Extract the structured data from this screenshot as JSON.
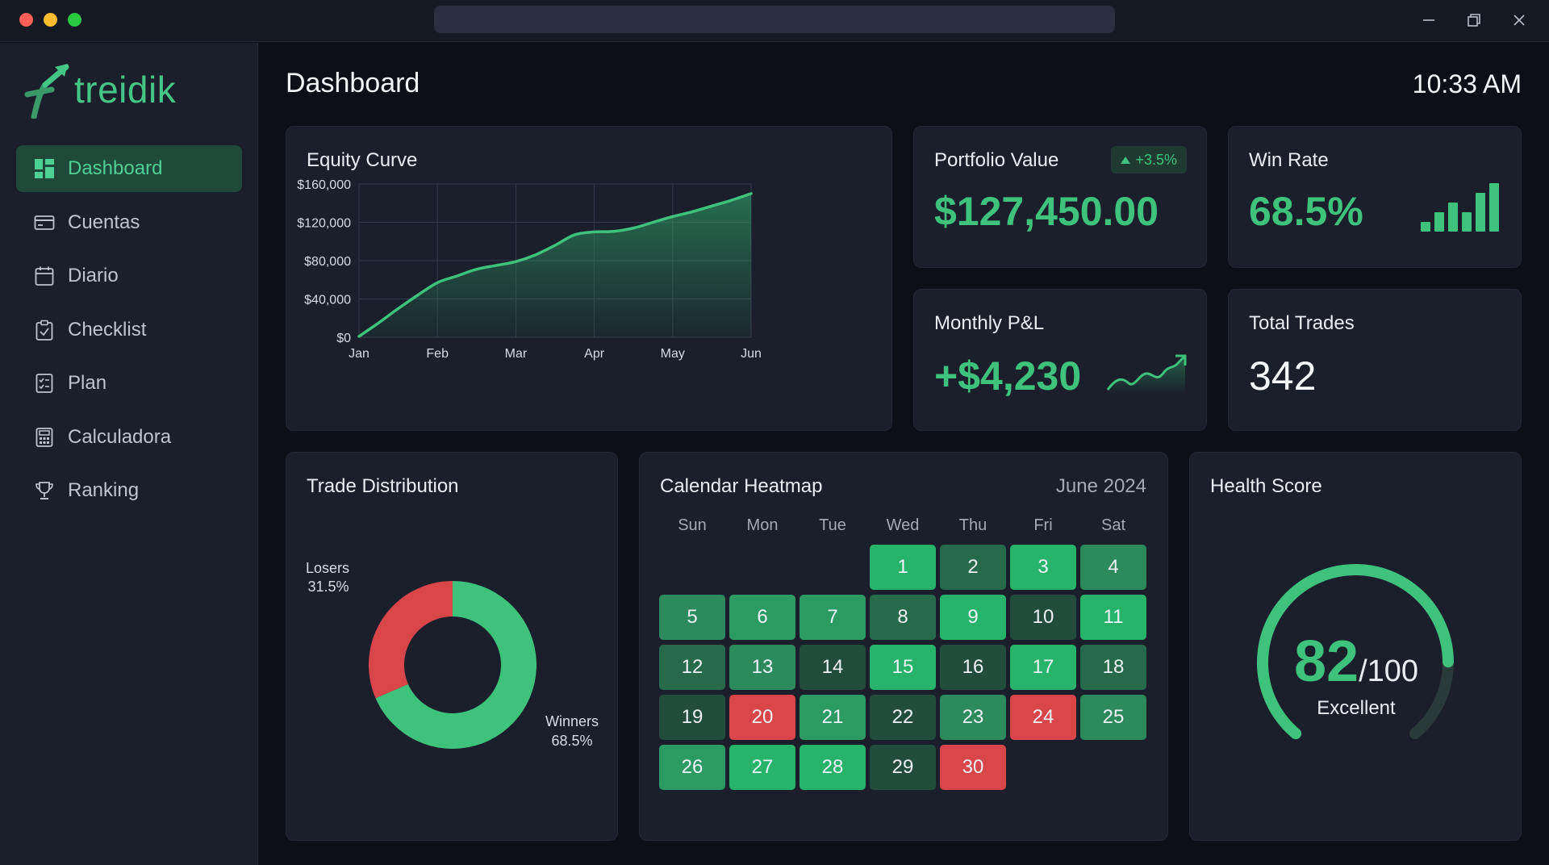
{
  "app": {
    "logo_text": "treidik",
    "nav": [
      {
        "label": "Dashboard",
        "icon": "dashboard-icon",
        "active": true
      },
      {
        "label": "Cuentas",
        "icon": "credit-card-icon",
        "active": false
      },
      {
        "label": "Diario",
        "icon": "calendar-icon",
        "active": false
      },
      {
        "label": "Checklist",
        "icon": "clipboard-check-icon",
        "active": false
      },
      {
        "label": "Plan",
        "icon": "plan-document-icon",
        "active": false
      },
      {
        "label": "Calculadora",
        "icon": "calculator-icon",
        "active": false
      },
      {
        "label": "Ranking",
        "icon": "trophy-icon",
        "active": false
      }
    ]
  },
  "header": {
    "title": "Dashboard",
    "time": "10:33 AM"
  },
  "portfolio": {
    "title": "Portfolio Value",
    "value": "$127,450.00",
    "change": "+3.5%"
  },
  "win_rate": {
    "title": "Win Rate",
    "value": "68.5%",
    "bar_levels": [
      0.2,
      0.4,
      0.6,
      0.4,
      0.8,
      1.0
    ]
  },
  "monthly_pnl": {
    "title": "Monthly P&L",
    "value": "+$4,230"
  },
  "total_trades": {
    "title": "Total Trades",
    "value": "342"
  },
  "colors": {
    "accent": "#3ec27c",
    "loss": "#d9464a",
    "card": "#1b1f2c",
    "background": "#0c0f18"
  },
  "chart_data": [
    {
      "type": "area",
      "title": "Equity Curve",
      "categories": [
        "Jan",
        "Feb",
        "Mar",
        "Apr",
        "May",
        "Jun"
      ],
      "x": [
        0,
        0.25,
        0.5,
        0.75,
        1,
        1.25,
        1.5,
        1.75,
        2,
        2.25,
        2.5,
        2.75,
        3,
        3.25,
        3.5,
        3.75,
        4,
        4.25,
        4.5,
        4.75,
        5
      ],
      "values": [
        1000,
        15000,
        30000,
        44000,
        57000,
        64000,
        71000,
        75000,
        79000,
        86000,
        96000,
        107000,
        110000,
        110500,
        114000,
        120000,
        126000,
        131000,
        137000,
        143000,
        150000
      ],
      "yticks": [
        "$0",
        "$40,000",
        "$80,000",
        "$120,000",
        "$160,000"
      ],
      "ylim": [
        0,
        160000
      ],
      "grid": true
    },
    {
      "type": "pie",
      "title": "Trade Distribution",
      "series": [
        {
          "name": "Winners",
          "value": 68.5,
          "label": "68.5%"
        },
        {
          "name": "Losers",
          "value": 31.5,
          "label": "31.5%"
        }
      ]
    }
  ],
  "calendar": {
    "title": "Calendar Heatmap",
    "month_label": "June 2024",
    "weekdays": [
      "Sun",
      "Mon",
      "Tue",
      "Wed",
      "Thu",
      "Fri",
      "Sat"
    ],
    "start_offset": 3,
    "days": [
      {
        "d": "1",
        "c": "#27b36a"
      },
      {
        "d": "2",
        "c": "#276a4b"
      },
      {
        "d": "3",
        "c": "#27b36a"
      },
      {
        "d": "4",
        "c": "#2c8a5c"
      },
      {
        "d": "5",
        "c": "#2c8a5c"
      },
      {
        "d": "6",
        "c": "#2c9a63"
      },
      {
        "d": "7",
        "c": "#2c9a63"
      },
      {
        "d": "8",
        "c": "#276a4b"
      },
      {
        "d": "9",
        "c": "#27b36a"
      },
      {
        "d": "10",
        "c": "#224c3c"
      },
      {
        "d": "11",
        "c": "#27b36a"
      },
      {
        "d": "12",
        "c": "#276a4b"
      },
      {
        "d": "13",
        "c": "#2c8a5c"
      },
      {
        "d": "14",
        "c": "#224c3c"
      },
      {
        "d": "15",
        "c": "#27b36a"
      },
      {
        "d": "16",
        "c": "#224c3c"
      },
      {
        "d": "17",
        "c": "#27b36a"
      },
      {
        "d": "18",
        "c": "#276a4b"
      },
      {
        "d": "19",
        "c": "#224c3c"
      },
      {
        "d": "20",
        "c": "#d9464a"
      },
      {
        "d": "21",
        "c": "#2c9a63"
      },
      {
        "d": "22",
        "c": "#224c3c"
      },
      {
        "d": "23",
        "c": "#2c8a5c"
      },
      {
        "d": "24",
        "c": "#d9464a"
      },
      {
        "d": "25",
        "c": "#2c8a5c"
      },
      {
        "d": "26",
        "c": "#2c9a63"
      },
      {
        "d": "27",
        "c": "#27b36a"
      },
      {
        "d": "28",
        "c": "#27b36a"
      },
      {
        "d": "29",
        "c": "#224c3c"
      },
      {
        "d": "30",
        "c": "#d9464a"
      }
    ]
  },
  "health": {
    "title": "Health Score",
    "score": "82",
    "out_of": "/100",
    "score_fraction": 0.82,
    "label": "Excellent"
  }
}
